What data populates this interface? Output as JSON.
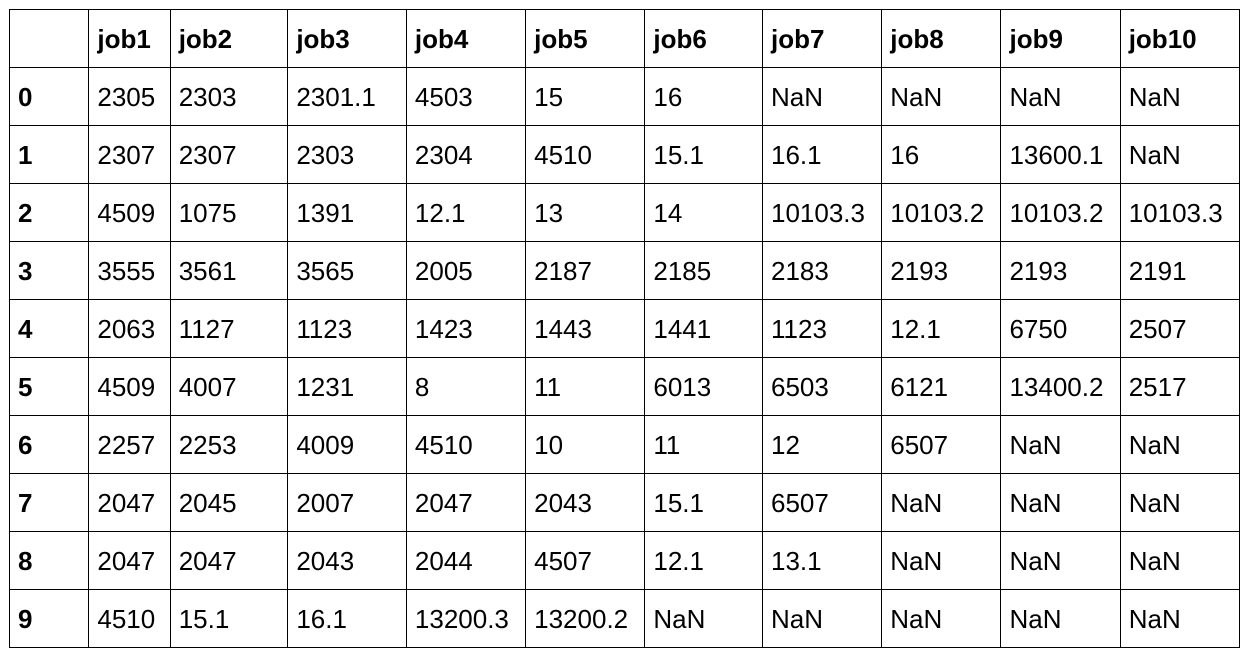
{
  "table": {
    "index_header": "",
    "columns": [
      "job1",
      "job2",
      "job3",
      "job4",
      "job5",
      "job6",
      "job7",
      "job8",
      "job9",
      "job10"
    ],
    "rows": [
      {
        "index": "0",
        "cells": [
          "2305",
          "2303",
          "2301.1",
          "4503",
          "15",
          "16",
          "NaN",
          "NaN",
          "NaN",
          "NaN"
        ]
      },
      {
        "index": "1",
        "cells": [
          "2307",
          "2307",
          "2303",
          "2304",
          "4510",
          "15.1",
          "16.1",
          "16",
          "13600.1",
          "NaN"
        ]
      },
      {
        "index": "2",
        "cells": [
          "4509",
          "1075",
          "1391",
          "12.1",
          "13",
          "14",
          "10103.3",
          "10103.2",
          "10103.2",
          "10103.3"
        ]
      },
      {
        "index": "3",
        "cells": [
          "3555",
          "3561",
          "3565",
          "2005",
          "2187",
          "2185",
          "2183",
          "2193",
          "2193",
          "2191"
        ]
      },
      {
        "index": "4",
        "cells": [
          "2063",
          "1127",
          "1123",
          "1423",
          "1443",
          "1441",
          "1123",
          "12.1",
          "6750",
          "2507"
        ]
      },
      {
        "index": "5",
        "cells": [
          "4509",
          "4007",
          "1231",
          "8",
          "11",
          "6013",
          "6503",
          "6121",
          "13400.2",
          "2517"
        ]
      },
      {
        "index": "6",
        "cells": [
          "2257",
          "2253",
          "4009",
          "4510",
          "10",
          "11",
          "12",
          "6507",
          "NaN",
          "NaN"
        ]
      },
      {
        "index": "7",
        "cells": [
          "2047",
          "2045",
          "2007",
          "2047",
          "2043",
          "15.1",
          "6507",
          "NaN",
          "NaN",
          "NaN"
        ]
      },
      {
        "index": "8",
        "cells": [
          "2047",
          "2047",
          "2043",
          "2044",
          "4507",
          "12.1",
          "13.1",
          "NaN",
          "NaN",
          "NaN"
        ]
      },
      {
        "index": "9",
        "cells": [
          "4510",
          "15.1",
          "16.1",
          "13200.3",
          "13200.2",
          "NaN",
          "NaN",
          "NaN",
          "NaN",
          "NaN"
        ]
      }
    ]
  }
}
